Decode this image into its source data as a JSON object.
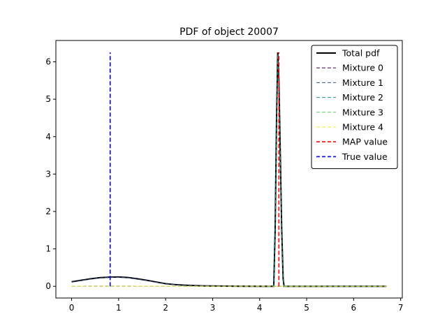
{
  "chart_data": {
    "type": "line",
    "title": "PDF of object 20007",
    "xlabel": "",
    "ylabel": "",
    "xlim": [
      -0.335,
      7.035
    ],
    "ylim": [
      -0.313,
      6.57
    ],
    "xticks": [
      0,
      1,
      2,
      3,
      4,
      5,
      6,
      7
    ],
    "yticks": [
      0,
      1,
      2,
      3,
      4,
      5,
      6
    ],
    "grid": false,
    "legend_position": "top-right",
    "series": [
      {
        "name": "Total pdf",
        "color": "#000000",
        "style": "solid",
        "x": [
          0,
          0.2,
          0.4,
          0.6,
          0.8,
          1.0,
          1.2,
          1.4,
          1.6,
          1.8,
          2.0,
          2.2,
          2.4,
          2.6,
          2.8,
          3.0,
          3.5,
          4.0,
          4.3,
          4.33,
          4.36,
          4.385,
          4.41,
          4.44,
          4.47,
          4.5,
          4.52,
          5.0,
          5.5,
          6.0,
          6.7
        ],
        "y": [
          0.12,
          0.16,
          0.2,
          0.23,
          0.245,
          0.25,
          0.235,
          0.2,
          0.16,
          0.115,
          0.07,
          0.045,
          0.03,
          0.02,
          0.012,
          0.008,
          0.002,
          0.0,
          0.0,
          1.5,
          4.5,
          6.25,
          5.5,
          3.5,
          1.5,
          0.2,
          0.0,
          0.0,
          0.0,
          0.0,
          0.0
        ]
      },
      {
        "name": "Mixture 0",
        "color": "#440154",
        "style": "dashed",
        "x": [
          0,
          1,
          2,
          3,
          4,
          5,
          6,
          6.7
        ],
        "y": [
          0.005,
          0.006,
          0.004,
          0.002,
          0.001,
          0.0,
          0.0,
          0.0
        ]
      },
      {
        "name": "Mixture 1",
        "color": "#3b528b",
        "style": "dashed",
        "x": [
          0,
          0.2,
          0.4,
          0.6,
          0.8,
          1.0,
          1.2,
          1.4,
          1.6,
          1.8,
          2.0,
          2.2,
          2.4,
          2.6,
          2.8,
          3.0,
          3.5,
          4.0,
          5.0,
          6.0,
          6.7
        ],
        "y": [
          0.11,
          0.15,
          0.19,
          0.22,
          0.235,
          0.24,
          0.225,
          0.19,
          0.15,
          0.105,
          0.065,
          0.04,
          0.025,
          0.015,
          0.01,
          0.006,
          0.001,
          0.0,
          0.0,
          0.0,
          0.0
        ]
      },
      {
        "name": "Mixture 2",
        "color": "#21918c",
        "style": "dashed",
        "x": [
          0,
          4.0,
          4.3,
          4.33,
          4.36,
          4.385,
          4.41,
          4.44,
          4.47,
          4.5,
          4.52,
          5.0,
          6.0,
          6.7
        ],
        "y": [
          0.0,
          0.0,
          0.0,
          1.48,
          4.45,
          6.2,
          5.45,
          3.45,
          1.48,
          0.2,
          0.0,
          0.0,
          0.0,
          0.0
        ]
      },
      {
        "name": "Mixture 3",
        "color": "#5ec962",
        "style": "dashed",
        "x": [
          0,
          1,
          2,
          3,
          4,
          5,
          6,
          6.7
        ],
        "y": [
          0.004,
          0.005,
          0.004,
          0.003,
          0.002,
          0.001,
          0.0,
          0.0
        ]
      },
      {
        "name": "Mixture 4",
        "color": "#fde725",
        "style": "dashed",
        "x": [
          0,
          1,
          2,
          3,
          4,
          5,
          6,
          6.7
        ],
        "y": [
          0.003,
          0.004,
          0.003,
          0.002,
          0.001,
          0.0,
          0.0,
          0.0
        ]
      }
    ],
    "vlines": [
      {
        "name": "MAP value",
        "color": "#ff0000",
        "style": "dashed",
        "x": 4.41,
        "ymin": 0,
        "ymax": 6.25
      },
      {
        "name": "True value",
        "color": "#0000ff",
        "style": "dashed",
        "x": 0.82,
        "ymin": 0,
        "ymax": 6.25
      }
    ]
  }
}
